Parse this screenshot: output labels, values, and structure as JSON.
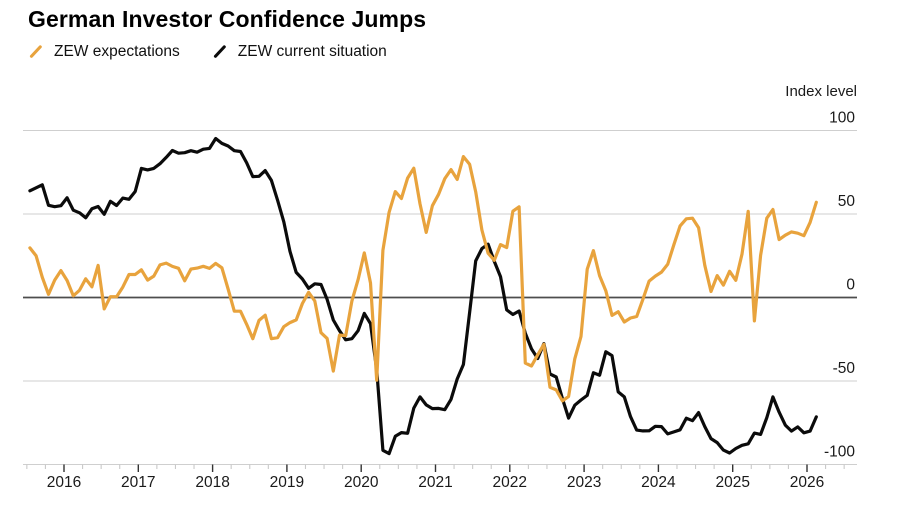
{
  "header": {
    "title": "German Investor Confidence Jumps"
  },
  "legend": [
    {
      "label": "ZEW expectations",
      "color": "#E8A33D"
    },
    {
      "label": "ZEW current situation",
      "color": "#0b0b0b"
    }
  ],
  "axis": {
    "unit_label": "Index level"
  },
  "chart_data": {
    "type": "line",
    "title": "German Investor Confidence Jumps",
    "ylabel": "Index level",
    "frequency": "monthly",
    "x_start": "2015-07",
    "x_end": "2026-02",
    "ylim": [
      -100,
      100
    ],
    "y_ticks": [
      100,
      50,
      0,
      -50,
      -100
    ],
    "x_ticks": [
      2016,
      2017,
      2018,
      2019,
      2020,
      2021,
      2022,
      2023,
      2024,
      2025,
      2026
    ],
    "grid": "horizontal",
    "legend_position": "top-left",
    "series": [
      {
        "name": "ZEW expectations",
        "color": "#E8A33D",
        "values": [
          29.7,
          25.0,
          12.1,
          1.9,
          10.4,
          16.1,
          10.2,
          1.0,
          4.3,
          11.2,
          6.4,
          19.2,
          -6.8,
          0.5,
          0.5,
          6.2,
          13.8,
          13.8,
          16.6,
          10.4,
          12.8,
          19.5,
          20.6,
          18.6,
          17.5,
          10.0,
          17.0,
          17.6,
          18.7,
          17.4,
          20.4,
          17.8,
          5.1,
          -8.2,
          -8.2,
          -16.1,
          -24.7,
          -13.7,
          -10.6,
          -24.7,
          -24.1,
          -17.5,
          -15.0,
          -13.4,
          -3.6,
          3.1,
          -2.1,
          -21.1,
          -24.5,
          -44.1,
          -22.5,
          -22.8,
          -2.1,
          10.7,
          26.7,
          8.7,
          -49.5,
          28.2,
          51.0,
          63.4,
          59.3,
          71.5,
          77.4,
          56.1,
          39.0,
          55.0,
          61.8,
          71.2,
          76.6,
          70.7,
          84.4,
          79.8,
          63.3,
          40.4,
          26.5,
          22.3,
          31.7,
          29.9,
          51.7,
          54.3,
          -39.3,
          -41.0,
          -34.3,
          -28.0,
          -53.8,
          -55.3,
          -61.9,
          -59.2,
          -36.7,
          -23.3,
          16.9,
          28.1,
          13.0,
          4.1,
          -10.7,
          -8.5,
          -14.7,
          -12.3,
          -11.4,
          -1.1,
          9.8,
          12.8,
          15.2,
          19.9,
          31.7,
          42.9,
          47.1,
          47.5,
          41.8,
          19.2,
          3.6,
          13.1,
          7.4,
          15.7,
          10.3,
          26.0,
          51.6,
          -14.0,
          25.2,
          47.5,
          52.7,
          34.7,
          37.3,
          39.3,
          38.5,
          37.0,
          45.0,
          57.0
        ]
      },
      {
        "name": "ZEW current situation",
        "color": "#0b0b0b",
        "values": [
          63.9,
          65.7,
          67.5,
          55.2,
          54.4,
          55.0,
          59.7,
          52.3,
          50.7,
          47.7,
          53.1,
          54.5,
          49.8,
          57.6,
          55.1,
          59.5,
          58.8,
          63.5,
          77.3,
          76.4,
          77.3,
          80.1,
          83.9,
          88.0,
          86.4,
          86.7,
          87.9,
          87.0,
          88.8,
          89.3,
          95.2,
          92.3,
          90.7,
          87.9,
          87.4,
          80.6,
          72.4,
          72.6,
          76.0,
          70.1,
          58.2,
          45.3,
          27.6,
          15.0,
          11.1,
          5.5,
          8.2,
          7.8,
          -1.1,
          -13.5,
          -19.9,
          -25.3,
          -24.7,
          -19.9,
          -9.5,
          -15.7,
          -43.1,
          -91.5,
          -93.5,
          -83.1,
          -80.9,
          -81.3,
          -66.2,
          -59.5,
          -64.3,
          -66.5,
          -66.4,
          -67.2,
          -61.0,
          -48.8,
          -40.1,
          -9.1,
          21.9,
          29.3,
          31.9,
          21.6,
          12.5,
          -7.4,
          -10.2,
          -8.1,
          -21.4,
          -30.8,
          -36.5,
          -27.6,
          -45.8,
          -47.6,
          -60.5,
          -72.2,
          -64.5,
          -61.4,
          -58.6,
          -45.1,
          -46.5,
          -32.5,
          -34.8,
          -56.5,
          -59.5,
          -71.3,
          -79.4,
          -79.9,
          -79.8,
          -77.1,
          -77.3,
          -81.7,
          -80.5,
          -79.2,
          -72.3,
          -73.8,
          -68.9,
          -77.3,
          -84.5,
          -86.9,
          -91.4,
          -93.1,
          -90.4,
          -88.5,
          -87.6,
          -81.2,
          -82.0,
          -72.0,
          -59.5,
          -68.6,
          -76.4,
          -80.0,
          -77.5,
          -81.0,
          -80.0,
          -71.5
        ]
      }
    ]
  }
}
